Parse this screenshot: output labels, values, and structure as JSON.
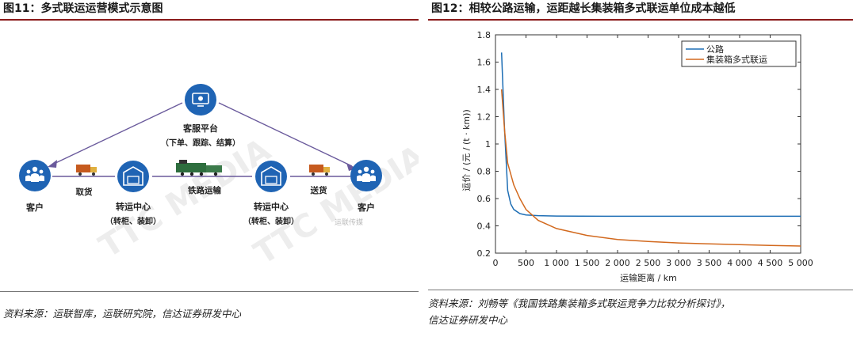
{
  "left": {
    "title": "图11：多式联运运营模式示意图",
    "nodes": {
      "platform_label": "客服平台",
      "platform_sub": "（下单、跟踪、结算）",
      "customer_left": "客户",
      "hub_left_label": "转运中心",
      "hub_left_sub": "（转柜、装卸）",
      "hub_right_label": "转运中心",
      "hub_right_sub": "（转柜、装卸）",
      "customer_right": "客户"
    },
    "edges": {
      "pickup": "取货",
      "rail": "铁路运输",
      "delivery": "送货"
    },
    "watermark": "TTC MEDIA",
    "watermark_logo": "运联传媒",
    "source": "资料来源：运联智库，运联研究院，信达证券研发中心",
    "colors": {
      "node": "#1f64b4",
      "edge": "#6a5a9c",
      "title_rule": "#8a1a1a"
    }
  },
  "right": {
    "title": "图12：相较公路运输，运距越长集装箱多式联运单位成本越低",
    "source_line1": "资料来源：刘畅等《我国铁路集装箱多式联运竞争力比较分析探讨》，",
    "source_line2": "信达证券研发中心"
  },
  "chart_data": {
    "type": "line",
    "title": "",
    "xlabel": "运输距离 / km",
    "ylabel": "运价 / (元 / (t · km))",
    "xlim": [
      0,
      5000
    ],
    "ylim": [
      0.2,
      1.8
    ],
    "xticks": [
      0,
      500,
      1000,
      1500,
      2000,
      2500,
      3000,
      3500,
      4000,
      4500,
      5000
    ],
    "xtick_labels": [
      "0",
      "500",
      "1 000",
      "1 500",
      "2 000",
      "2 500",
      "3 000",
      "3 500",
      "4 000",
      "4 500",
      "5 000"
    ],
    "yticks": [
      0.2,
      0.4,
      0.6,
      0.8,
      1.0,
      1.2,
      1.4,
      1.6,
      1.8
    ],
    "ytick_labels": [
      "0.2",
      "0.4",
      "0.6",
      "0.8",
      "1",
      "1.2",
      "1.4",
      "1.6",
      "1.8"
    ],
    "legend_position": "top-right",
    "grid": false,
    "series": [
      {
        "name": "公路",
        "color": "#1f6fb5",
        "x": [
          100,
          150,
          200,
          250,
          300,
          400,
          500,
          700,
          1000,
          2000,
          3000,
          4000,
          5000
        ],
        "y": [
          1.67,
          1.1,
          0.66,
          0.56,
          0.52,
          0.49,
          0.48,
          0.475,
          0.472,
          0.47,
          0.47,
          0.47,
          0.47
        ]
      },
      {
        "name": "集装箱多式联运",
        "color": "#d2691e",
        "x": [
          100,
          150,
          200,
          300,
          400,
          500,
          700,
          1000,
          1500,
          2000,
          2500,
          3000,
          3500,
          4000,
          4500,
          5000
        ],
        "y": [
          1.4,
          1.1,
          0.86,
          0.7,
          0.6,
          0.52,
          0.44,
          0.38,
          0.33,
          0.3,
          0.285,
          0.275,
          0.268,
          0.262,
          0.256,
          0.252
        ]
      }
    ]
  }
}
